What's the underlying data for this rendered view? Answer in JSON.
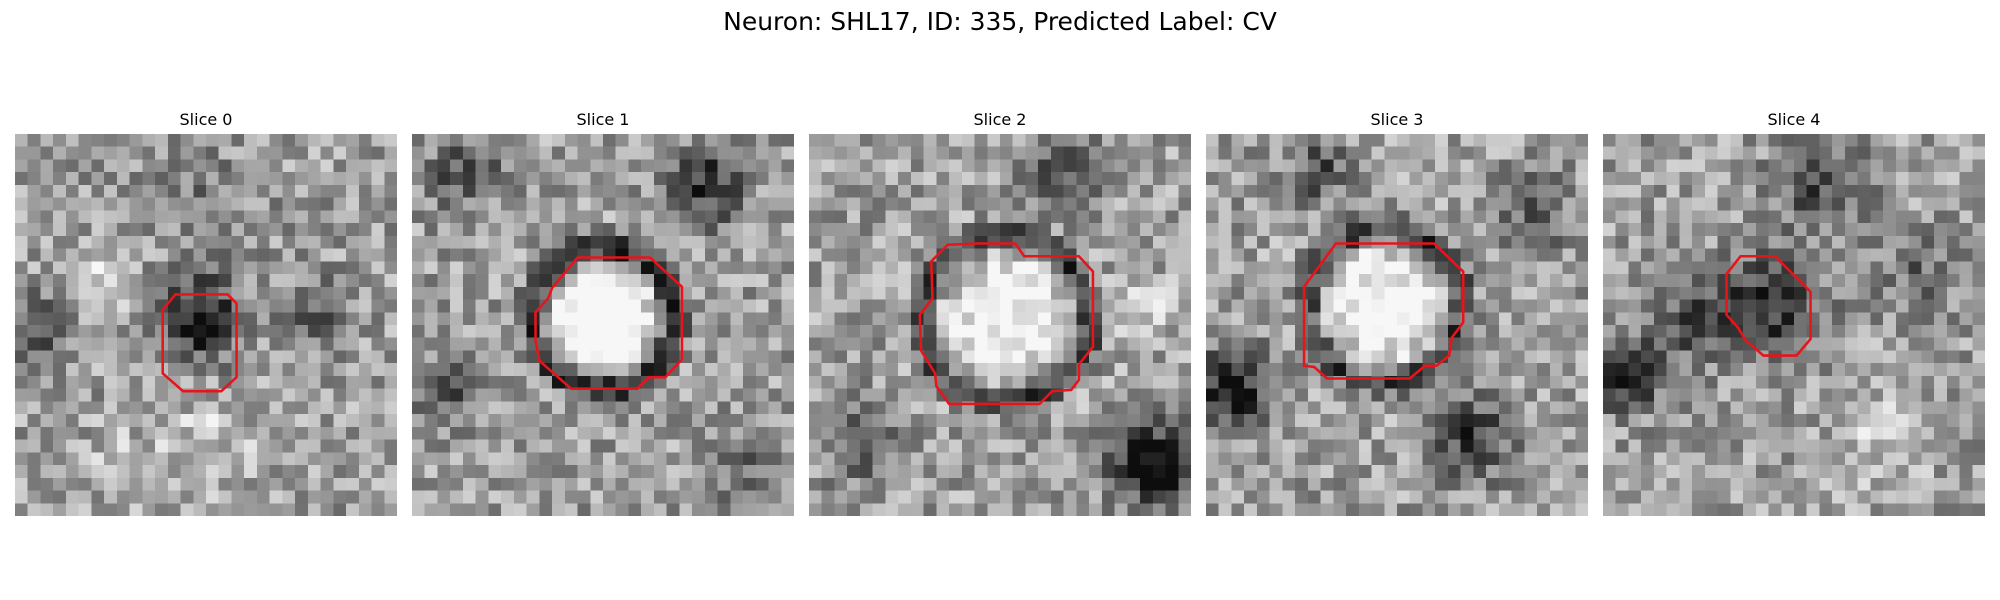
{
  "figure": {
    "title": "Neuron: SHL17, ID: 335, Predicted Label: CV",
    "slices": [
      {
        "label": "Slice 0"
      },
      {
        "label": "Slice 1"
      },
      {
        "label": "Slice 2"
      },
      {
        "label": "Slice 3"
      },
      {
        "label": "Slice 4"
      }
    ]
  },
  "colors": {
    "contour": "#e8141b",
    "background": "#ffffff"
  }
}
